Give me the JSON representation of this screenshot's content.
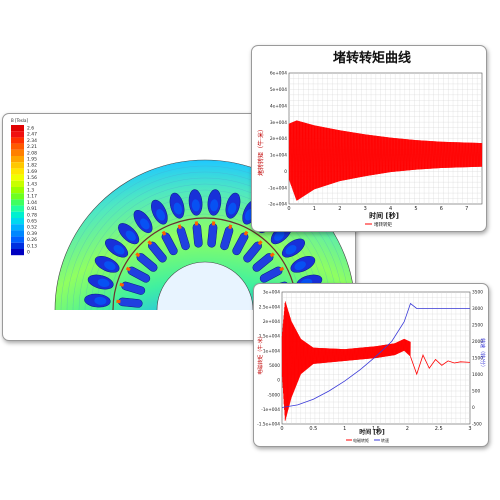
{
  "chart_data": [
    {
      "type": "heatmap",
      "title": "",
      "legend": {
        "unit_label": "B [Tesla]",
        "levels": [
          "2.6",
          "2.47",
          "2.34",
          "2.21",
          "2.08",
          "1.95",
          "1.82",
          "1.69",
          "1.56",
          "1.43",
          "1.3",
          "1.17",
          "1.04",
          "0.91",
          "0.78",
          "0.65",
          "0.52",
          "0.39",
          "0.26",
          "0.13",
          "0"
        ],
        "colors": [
          "#e00000",
          "#f01010",
          "#ff3000",
          "#ff5a00",
          "#ff8000",
          "#ffa500",
          "#ffc800",
          "#ffe600",
          "#f0ff00",
          "#c8ff00",
          "#9bff00",
          "#6eff20",
          "#40ff60",
          "#20ffa0",
          "#00f0d0",
          "#00d8f0",
          "#00b0ff",
          "#0088ff",
          "#0060ff",
          "#0030e0",
          "#0000c0"
        ],
        "placement": "left"
      }
    },
    {
      "type": "line",
      "title": "堵转转矩曲线",
      "xlabel": "时间 [秒]",
      "ylabel": "堵转转矩（牛·米）",
      "xlim": [
        0,
        7.6
      ],
      "ylim": [
        -20000,
        60000
      ],
      "x_ticks": [
        "0",
        "1",
        "2",
        "3",
        "4",
        "5",
        "6",
        "7"
      ],
      "y_ticks": [
        "6e+004",
        "5e+004",
        "4e+004",
        "3e+004",
        "2e+004",
        "1e+004",
        "0",
        "-1e+004",
        "-2e+004"
      ],
      "grid": true,
      "series": [
        {
          "name": "堵转转矩",
          "color": "#ff0000",
          "envelope_upper": [
            [
              0,
              29000
            ],
            [
              0.3,
              31000
            ],
            [
              1,
              28000
            ],
            [
              2,
              25000
            ],
            [
              3,
              22500
            ],
            [
              4,
              20500
            ],
            [
              5,
              19000
            ],
            [
              6,
              18000
            ],
            [
              7,
              17500
            ],
            [
              7.6,
              17200
            ]
          ],
          "envelope_lower": [
            [
              0,
              -5000
            ],
            [
              0.3,
              -18000
            ],
            [
              1,
              -11000
            ],
            [
              2,
              -6000
            ],
            [
              3,
              -3000
            ],
            [
              4,
              -500
            ],
            [
              5,
              1000
            ],
            [
              6,
              2000
            ],
            [
              7,
              2500
            ],
            [
              7.6,
              2800
            ]
          ]
        }
      ]
    },
    {
      "type": "line",
      "title": "",
      "xlabel": "时间 [秒]",
      "ylabel": "电磁转矩（牛·米）",
      "y2label": "转速（转/分）",
      "xlim": [
        0,
        3
      ],
      "ylim": [
        -15000,
        30000
      ],
      "y2lim": [
        -500,
        3500
      ],
      "x_ticks": [
        "0",
        "0.5",
        "1",
        "1.5",
        "2",
        "2.5",
        "3"
      ],
      "y_ticks": [
        "3e+004",
        "2.5e+004",
        "2e+004",
        "1.5e+004",
        "1e+004",
        "5000",
        "0",
        "-5000",
        "-1e+004",
        "-1.5e+004"
      ],
      "y2_ticks": [
        "3500",
        "3000",
        "2500",
        "2000",
        "1500",
        "1000",
        "500",
        "0",
        "-500"
      ],
      "grid": true,
      "legend": {
        "entries": [
          "电磁转矩",
          "转速"
        ],
        "placement": "bottom"
      },
      "series": [
        {
          "name": "电磁转矩",
          "axis": "left",
          "color": "#ff0000",
          "envelope_upper": [
            [
              0,
              15000
            ],
            [
              0.05,
              27000
            ],
            [
              0.15,
              20000
            ],
            [
              0.3,
              14000
            ],
            [
              0.5,
              11000
            ],
            [
              1,
              10500
            ],
            [
              1.5,
              11500
            ],
            [
              1.8,
              12500
            ],
            [
              1.95,
              14000
            ],
            [
              2.05,
              13000
            ]
          ],
          "envelope_lower": [
            [
              0,
              2000
            ],
            [
              0.05,
              -14000
            ],
            [
              0.15,
              -6000
            ],
            [
              0.3,
              2000
            ],
            [
              0.5,
              5500
            ],
            [
              1,
              6500
            ],
            [
              1.5,
              7500
            ],
            [
              1.8,
              8500
            ],
            [
              1.95,
              10000
            ],
            [
              2.05,
              8000
            ]
          ],
          "tail": [
            [
              2.05,
              8000
            ],
            [
              2.15,
              2000
            ],
            [
              2.25,
              8500
            ],
            [
              2.35,
              4000
            ],
            [
              2.45,
              7000
            ],
            [
              2.55,
              5000
            ],
            [
              2.65,
              6500
            ],
            [
              2.75,
              5800
            ],
            [
              2.85,
              6200
            ],
            [
              3,
              6000
            ]
          ]
        },
        {
          "name": "转速",
          "axis": "right",
          "color": "#3a3ad8",
          "points": [
            [
              0,
              0
            ],
            [
              0.25,
              80
            ],
            [
              0.5,
              250
            ],
            [
              0.75,
              500
            ],
            [
              1,
              800
            ],
            [
              1.25,
              1150
            ],
            [
              1.5,
              1550
            ],
            [
              1.75,
              2000
            ],
            [
              1.95,
              2600
            ],
            [
              2.05,
              3150
            ],
            [
              2.15,
              3000
            ],
            [
              2.3,
              3000
            ],
            [
              2.5,
              3000
            ],
            [
              3,
              3000
            ]
          ]
        }
      ]
    }
  ]
}
